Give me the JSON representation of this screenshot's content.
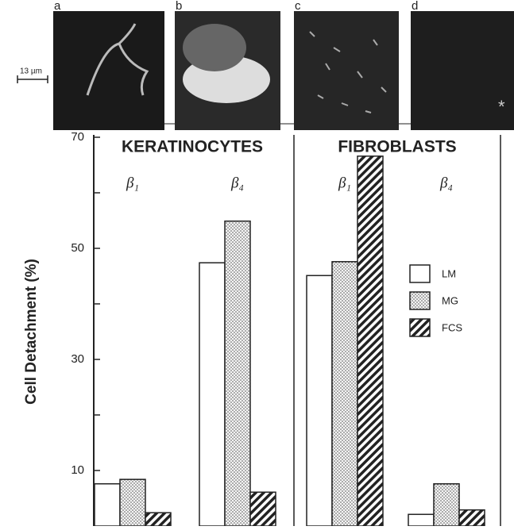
{
  "panels": {
    "labels": [
      "a",
      "b",
      "c",
      "d"
    ],
    "scale_bar": "13 µm",
    "marker": "*"
  },
  "chart_data": {
    "type": "bar",
    "groups": [
      "KERATINOCYTES",
      "FIBROBLASTS"
    ],
    "categories": [
      "β₁",
      "β₄",
      "β₁",
      "β₄"
    ],
    "ylabel": "Cell Detachment (%)",
    "ylim": [
      0,
      70
    ],
    "yticks": [
      10,
      30,
      50,
      70
    ],
    "yminorticks": [
      20,
      40,
      60
    ],
    "series": [
      {
        "name": "LM",
        "fill": "plain",
        "values": [
          7.6,
          47.4,
          45.1,
          2.1
        ]
      },
      {
        "name": "MG",
        "fill": "dots",
        "values": [
          8.4,
          54.9,
          47.6,
          7.6
        ]
      },
      {
        "name": "FCS",
        "fill": "hatch",
        "values": [
          2.4,
          6.1,
          66.6,
          2.9
        ]
      }
    ]
  }
}
